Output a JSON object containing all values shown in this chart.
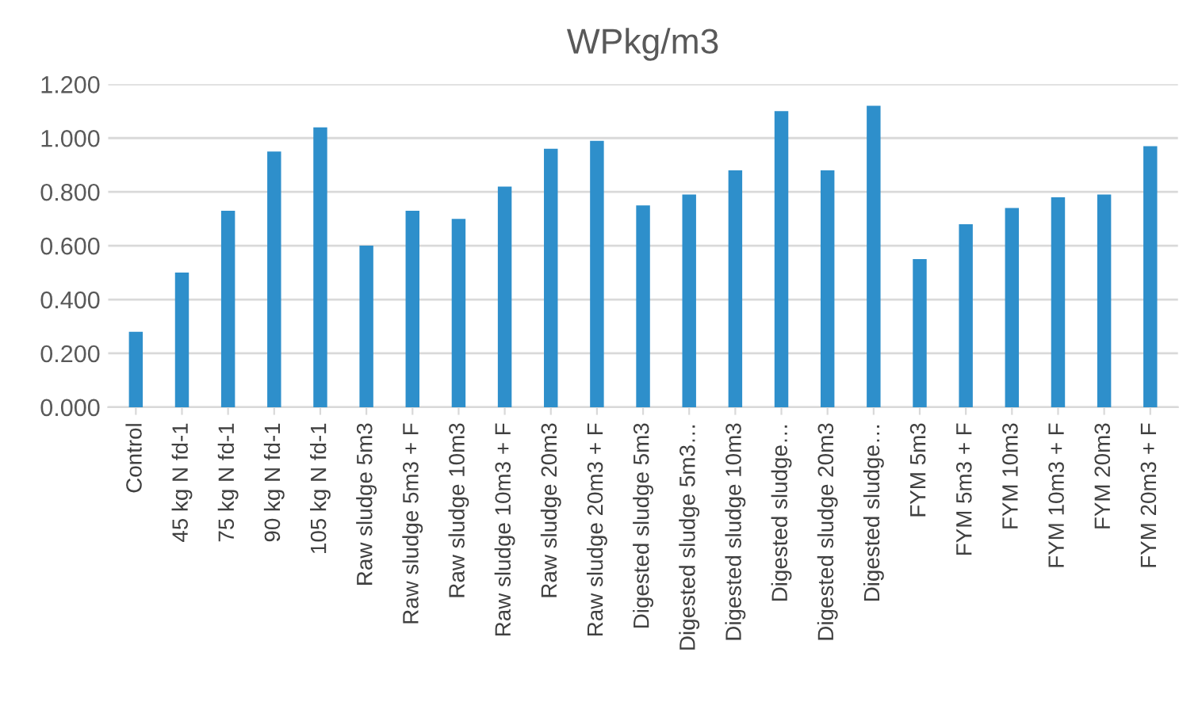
{
  "chart_data": {
    "type": "bar",
    "title": "WPkg/m3",
    "categories": [
      "Control",
      "45 kg N fd-1",
      "75 kg N fd-1",
      "90 kg N fd-1",
      "105 kg N fd-1",
      "Raw sludge 5m3",
      "Raw sludge 5m3 + F",
      "Raw sludge 10m3",
      "Raw sludge 10m3 + F",
      "Raw sludge 20m3",
      "Raw sludge 20m3 + F",
      "Digested sludge 5m3",
      "Digested sludge 5m3…",
      "Digested sludge 10m3",
      "Digested sludge…",
      "Digested sludge 20m3",
      "Digested sludge…",
      "FYM 5m3",
      "FYM 5m3 + F",
      "FYM 10m3",
      "FYM 10m3 + F",
      "FYM 20m3",
      "FYM 20m3 + F"
    ],
    "values": [
      0.28,
      0.5,
      0.73,
      0.95,
      1.04,
      0.6,
      0.73,
      0.7,
      0.82,
      0.96,
      0.99,
      0.75,
      0.79,
      0.88,
      1.1,
      0.88,
      1.12,
      0.55,
      0.68,
      0.74,
      0.78,
      0.79,
      0.97
    ],
    "color": "#2e8fcb",
    "ylim": [
      0,
      1.2
    ],
    "yticks": [
      {
        "value": 0,
        "label": "0.000"
      },
      {
        "value": 0.2,
        "label": "0.200"
      },
      {
        "value": 0.4,
        "label": "0.400"
      },
      {
        "value": 0.6,
        "label": "0.600"
      },
      {
        "value": 0.8,
        "label": "0.800"
      },
      {
        "value": 1.0,
        "label": "1.000"
      },
      {
        "value": 1.2,
        "label": "1.200"
      }
    ],
    "grid": "y",
    "legend": false
  }
}
